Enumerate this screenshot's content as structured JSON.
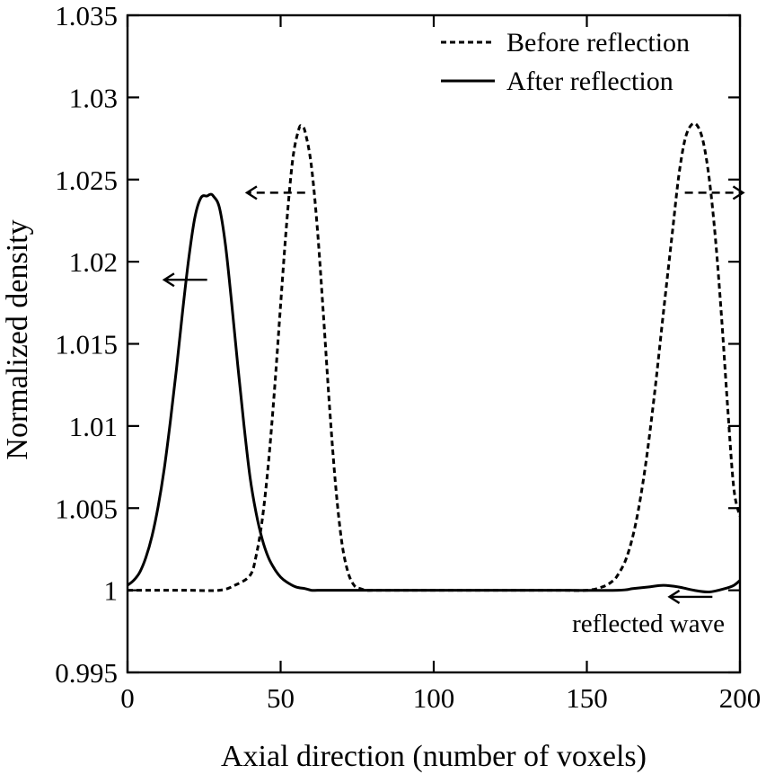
{
  "chart_data": {
    "type": "line",
    "title": "",
    "xlabel": "Axial direction (number of voxels)",
    "ylabel": "Normalized density",
    "xlim": [
      0,
      200
    ],
    "ylim": [
      0.995,
      1.035
    ],
    "xticks": [
      0,
      50,
      100,
      150,
      200
    ],
    "xtick_labels": [
      "0",
      "50",
      "100",
      "150",
      "200"
    ],
    "yticks": [
      0.995,
      1.0,
      1.005,
      1.01,
      1.015,
      1.02,
      1.025,
      1.03,
      1.035
    ],
    "ytick_labels": [
      "0.995",
      "1",
      "1.005",
      "1.01",
      "1.015",
      "1.02",
      "1.025",
      "1.03",
      "1.035"
    ],
    "grid": false,
    "legend_position": "top-right",
    "series": [
      {
        "name": "Before reflection",
        "style": "dashed",
        "color": "#000000",
        "x": [
          0,
          10,
          20,
          30,
          35,
          40,
          42,
          44,
          46,
          48,
          50,
          52,
          54,
          56,
          57,
          58,
          60,
          62,
          64,
          66,
          68,
          70,
          72,
          74,
          76,
          78,
          80,
          85,
          90,
          100,
          120,
          140,
          150,
          155,
          158,
          160,
          163,
          166,
          169,
          172,
          175,
          178,
          180,
          182,
          184,
          186,
          188,
          190,
          192,
          194,
          196,
          198,
          200
        ],
        "y": [
          1.0,
          1.0,
          1.0,
          1.0,
          1.0003,
          1.0009,
          1.0021,
          1.0043,
          1.0077,
          1.0122,
          1.0174,
          1.0224,
          1.0263,
          1.0281,
          1.0282,
          1.0279,
          1.0259,
          1.022,
          1.0167,
          1.0111,
          1.0063,
          1.0029,
          1.0011,
          1.0003,
          1.0001,
          1.0,
          1.0,
          1.0,
          1.0,
          1.0,
          1.0,
          1.0,
          1.0,
          1.0002,
          1.0005,
          1.0009,
          1.002,
          1.0041,
          1.0074,
          1.0118,
          1.0169,
          1.0219,
          1.0252,
          1.0274,
          1.0283,
          1.0283,
          1.0273,
          1.025,
          1.0214,
          1.0166,
          1.0111,
          1.0062,
          1.0045
        ]
      },
      {
        "name": "After reflection",
        "style": "solid",
        "color": "#000000",
        "x": [
          0,
          2,
          4,
          6,
          8,
          10,
          12,
          14,
          16,
          18,
          20,
          22,
          24,
          26,
          27,
          28,
          30,
          32,
          34,
          36,
          38,
          40,
          42,
          44,
          46,
          48,
          50,
          52,
          55,
          58,
          60,
          62,
          65,
          70,
          80,
          100,
          120,
          140,
          160,
          165,
          170,
          175,
          180,
          185,
          190,
          195,
          198,
          200
        ],
        "y": [
          1.0003,
          1.0006,
          1.0011,
          1.002,
          1.0033,
          1.0051,
          1.0074,
          1.0103,
          1.0135,
          1.017,
          1.0202,
          1.0227,
          1.0239,
          1.024,
          1.0241,
          1.024,
          1.0233,
          1.021,
          1.0175,
          1.0137,
          1.0101,
          1.0069,
          1.0047,
          1.0031,
          1.002,
          1.0013,
          1.0008,
          1.0005,
          1.0002,
          1.0001,
          1.0,
          1.0,
          1.0,
          1.0,
          1.0,
          1.0,
          1.0,
          1.0,
          1.0,
          1.0001,
          1.0002,
          1.0003,
          1.0002,
          1.0,
          0.9999,
          1.0001,
          1.0003,
          1.0006
        ]
      }
    ],
    "annotations": [
      {
        "text": "reflected wave"
      }
    ],
    "arrows": [
      {
        "style": "dashed",
        "direction": "left",
        "from": [
          58,
          1.0242
        ],
        "to": [
          39,
          1.0242
        ]
      },
      {
        "style": "dashed",
        "direction": "right",
        "from": [
          182,
          1.0242
        ],
        "to": [
          201,
          1.0242
        ]
      },
      {
        "style": "solid",
        "direction": "left",
        "from": [
          26,
          1.0189
        ],
        "to": [
          12,
          1.0189
        ]
      },
      {
        "style": "solid",
        "direction": "left",
        "from": [
          191,
          0.9996
        ],
        "to": [
          177,
          0.9996
        ]
      }
    ]
  }
}
